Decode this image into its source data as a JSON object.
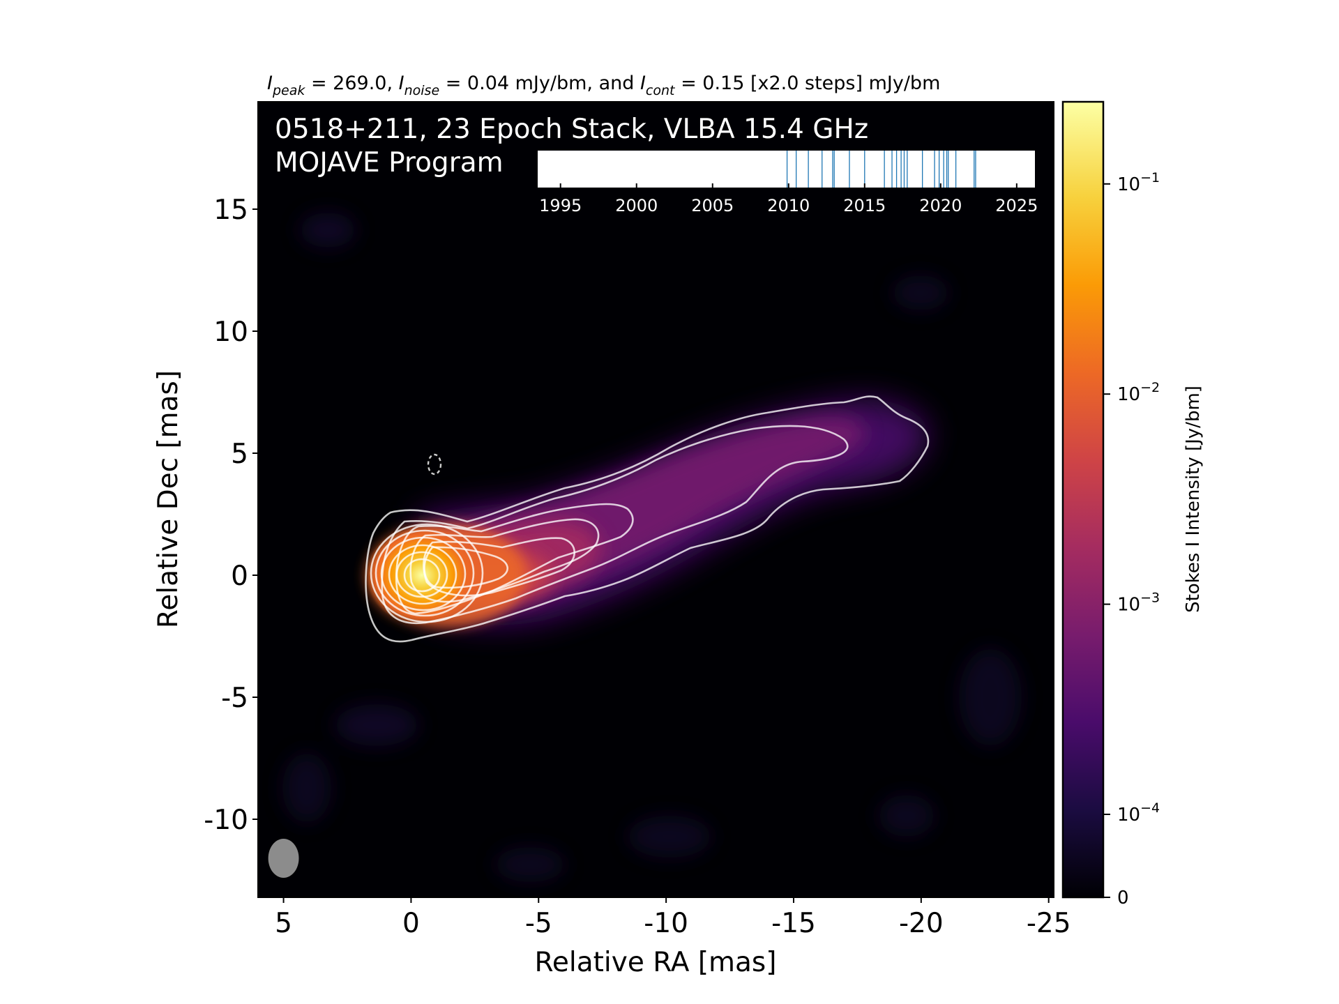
{
  "chart_data": {
    "type": "heatmap",
    "title": {
      "i_peak_symbol": "I",
      "i_peak_sub": "peak",
      "i_peak_value": " = 269.0, ",
      "i_noise_symbol": "I",
      "i_noise_sub": "noise",
      "i_noise_value": " = 0.04 mJy/bm, and ",
      "i_cont_symbol": "I",
      "i_cont_sub": "cont",
      "i_cont_value": " = 0.15 [x2.0 steps] mJy/bm"
    },
    "panel_text": {
      "line1": "0518+211, 23 Epoch Stack, VLBA 15.4 GHz",
      "line2": "MOJAVE Program"
    },
    "xlabel": "Relative RA [mas]",
    "ylabel": "Relative Dec [mas]",
    "xlim": [
      6,
      -25.2
    ],
    "ylim": [
      -13.2,
      19.4
    ],
    "xticks": [
      5,
      0,
      -5,
      -10,
      -15,
      -20,
      -25
    ],
    "xtick_labels": [
      "5",
      "0",
      "-5",
      "-10",
      "-15",
      "-20",
      "-25"
    ],
    "yticks": [
      15,
      10,
      5,
      0,
      -5,
      -10
    ],
    "ytick_labels": [
      "15",
      "10",
      "5",
      "0",
      "-5",
      "-10"
    ],
    "colorbar": {
      "label": "Stokes I Intensity [Jy/bm]",
      "scale": "log",
      "range": [
        0,
        0.27
      ],
      "ticks": [
        0.1,
        0.01,
        0.001,
        0.0001,
        0
      ],
      "tick_labels": [
        {
          "base": "10",
          "exp": "−1"
        },
        {
          "base": "10",
          "exp": "−2"
        },
        {
          "base": "10",
          "exp": "−3"
        },
        {
          "base": "10",
          "exp": "−4"
        },
        {
          "base": "0",
          "exp": ""
        }
      ],
      "colormap": [
        "#000004",
        "#1b0c41",
        "#4a0c6b",
        "#781c6d",
        "#a52c60",
        "#cf4446",
        "#ed6925",
        "#fb9b06",
        "#f7d13d",
        "#fcffa4"
      ]
    },
    "epoch_timeline": {
      "xlim": [
        1993.5,
        2026.2
      ],
      "ticks": [
        1995,
        2000,
        2005,
        2010,
        2015,
        2020,
        2025
      ],
      "tick_labels": [
        "1995",
        "2000",
        "2005",
        "2010",
        "2015",
        "2020",
        "2025"
      ],
      "epochs": [
        2009.9,
        2010.5,
        2011.3,
        2012.2,
        2012.9,
        2013.0,
        2014.0,
        2015.0,
        2016.3,
        2016.8,
        2017.1,
        2017.4,
        2017.6,
        2017.8,
        2018.8,
        2019.6,
        2019.9,
        2020.2,
        2020.4,
        2020.5,
        2021.0,
        2022.2,
        2022.3
      ],
      "color": "#1f77b4"
    },
    "jet": {
      "core": [
        0,
        0
      ],
      "ridge": [
        [
          0,
          0
        ],
        [
          -3,
          0.1
        ],
        [
          -6,
          0.7
        ],
        [
          -9,
          1.6
        ],
        [
          -12,
          2.8
        ],
        [
          -15,
          3.9
        ],
        [
          -18,
          4.8
        ],
        [
          -20.5,
          5.4
        ]
      ],
      "contour_levels_mJy": [
        0.15,
        0.3,
        0.6,
        1.2,
        2.4,
        4.8,
        9.6,
        19.2,
        38.4,
        76.8,
        153.6
      ],
      "contour_color": "#ffffff"
    },
    "beam": {
      "x": 5,
      "y": -11.6,
      "major_mas": 1.6,
      "minor_mas": 1.2,
      "pa_deg": 0,
      "color": "#8c8c8c"
    }
  }
}
